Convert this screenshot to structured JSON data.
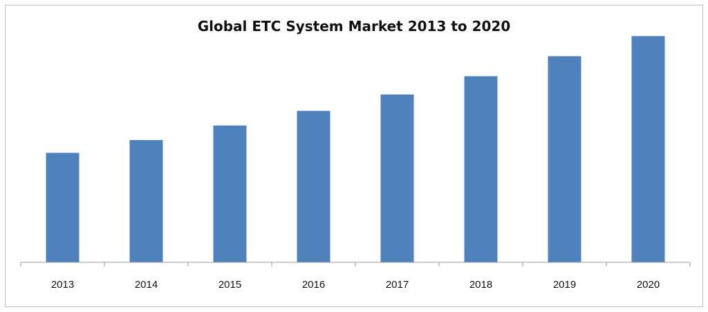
{
  "chart_data": {
    "type": "bar",
    "title": "Global ETC System Market 2013 to 2020",
    "categories": [
      "2013",
      "2014",
      "2015",
      "2016",
      "2017",
      "2018",
      "2019",
      "2020"
    ],
    "values": [
      30,
      33.5,
      37.5,
      41.5,
      46,
      51,
      56.5,
      62
    ],
    "xlabel": "",
    "ylabel": "",
    "ylim": [
      0,
      70
    ],
    "grid": false,
    "legend": "none",
    "y_axis_labels_shown": false,
    "colors": {
      "bar": "#4f81bd",
      "axis": "#9a9a9a"
    }
  }
}
